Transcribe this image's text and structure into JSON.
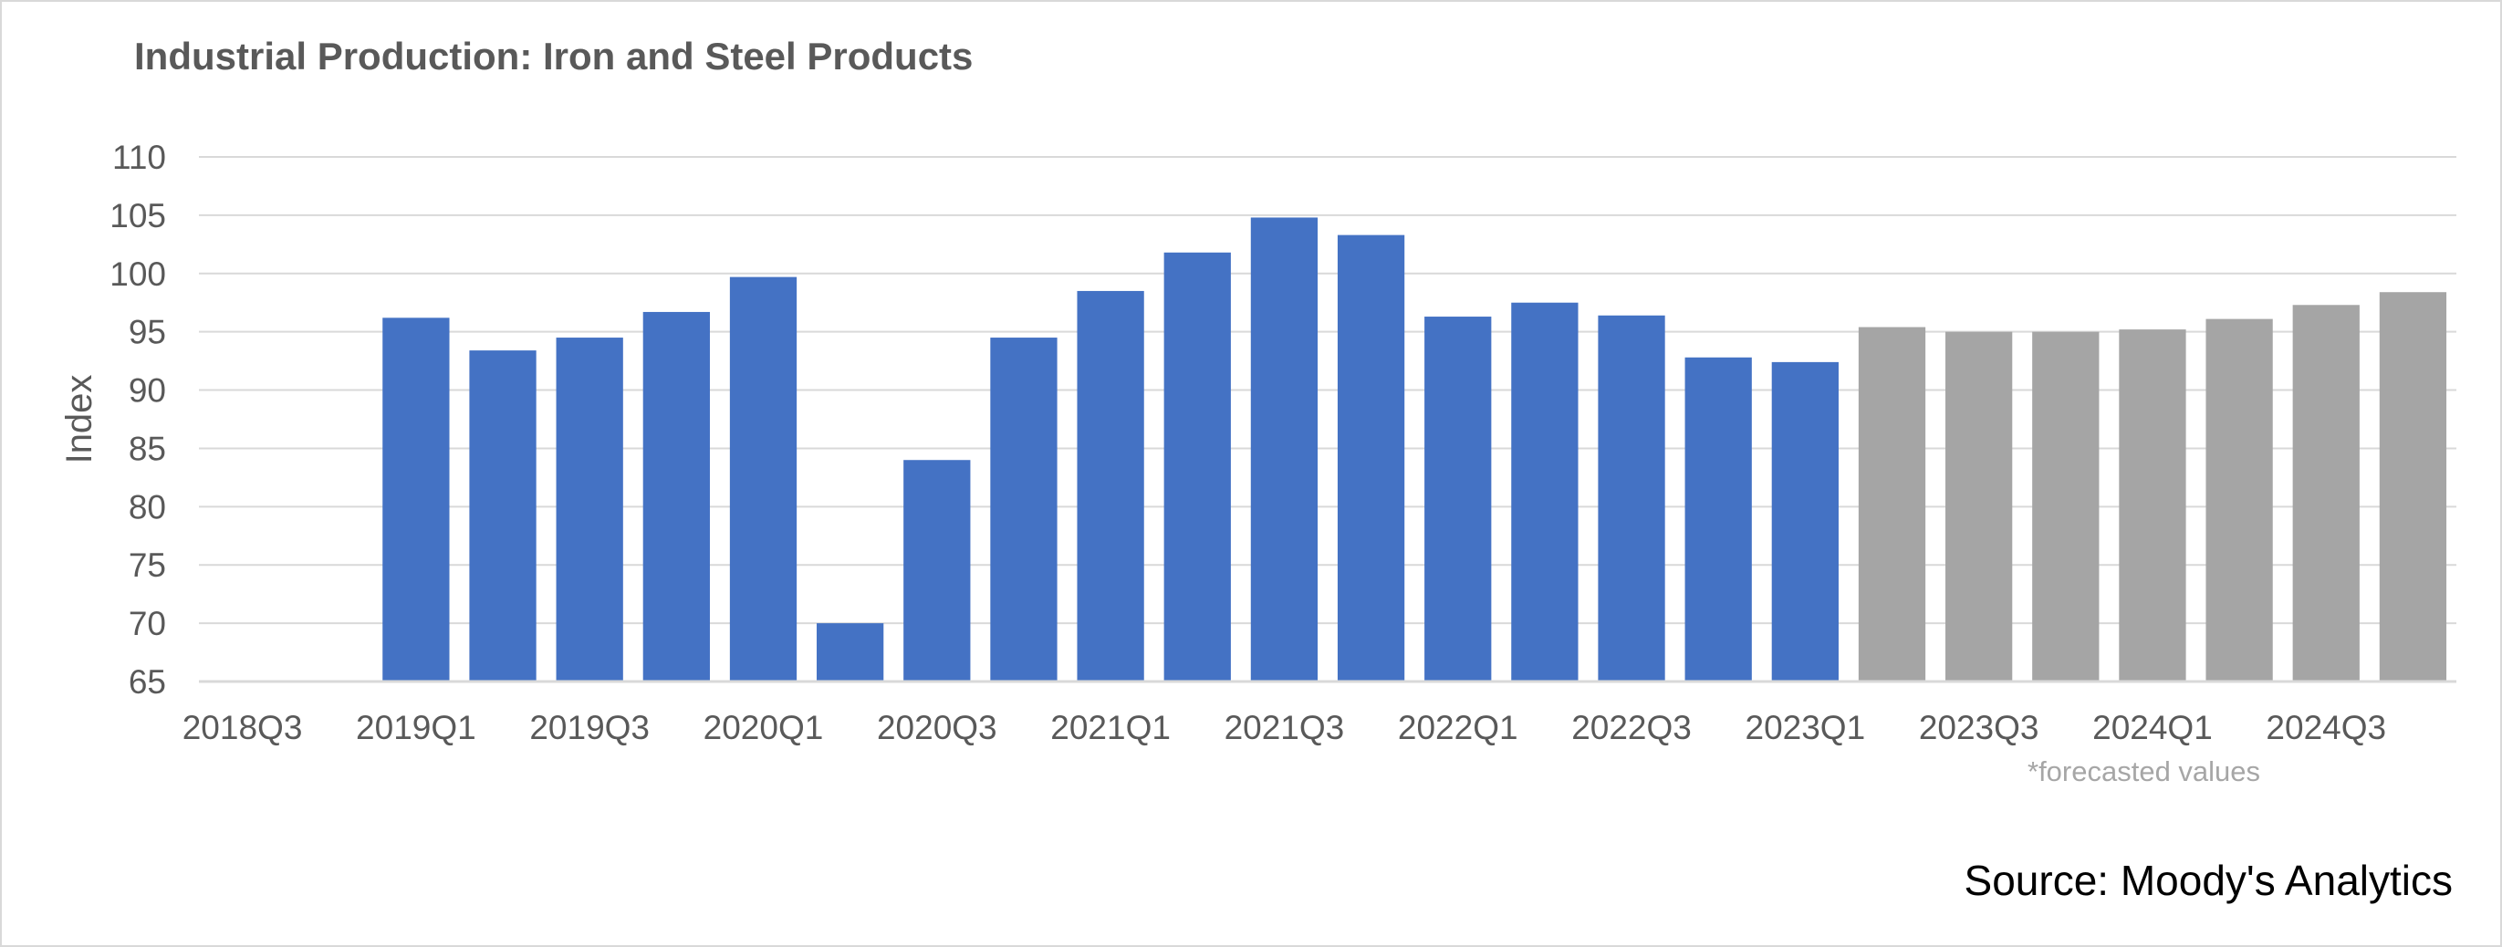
{
  "chart_data": {
    "type": "bar",
    "title": "Industrial Production: Iron and Steel Products",
    "xlabel": "",
    "ylabel": "Index",
    "ylim": [
      65,
      110
    ],
    "yticks": [
      65,
      70,
      75,
      80,
      85,
      90,
      95,
      100,
      105,
      110
    ],
    "grid": true,
    "categories": [
      "2018Q3",
      "2018Q4",
      "2019Q1",
      "2019Q2",
      "2019Q3",
      "2019Q4",
      "2020Q1",
      "2020Q2",
      "2020Q3",
      "2020Q4",
      "2021Q1",
      "2021Q2",
      "2021Q3",
      "2021Q4",
      "2022Q1",
      "2022Q2",
      "2022Q3",
      "2022Q4",
      "2023Q1",
      "2023Q2",
      "2023Q3",
      "2023Q4",
      "2024Q1",
      "2024Q2",
      "2024Q3",
      "2024Q4"
    ],
    "x_tick_labels": [
      "2018Q3",
      "2019Q1",
      "2019Q3",
      "2020Q1",
      "2020Q3",
      "2021Q1",
      "2021Q3",
      "2022Q1",
      "2022Q3",
      "2023Q1",
      "2023Q3",
      "2024Q1",
      "2024Q3"
    ],
    "values": [
      null,
      null,
      96.2,
      93.4,
      94.5,
      96.7,
      99.7,
      70.0,
      84.0,
      94.5,
      98.5,
      101.8,
      104.8,
      103.3,
      96.3,
      97.5,
      96.4,
      92.8,
      92.4,
      95.4,
      95.0,
      95.0,
      95.2,
      96.1,
      97.3,
      98.4
    ],
    "forecast_start_index": 19,
    "colors": {
      "actual": "#4472c4",
      "forecast": "#a5a5a5",
      "grid": "#d9d9d9",
      "axis_text": "#595959"
    },
    "annotation": "*forecasted values",
    "source": "Source: Moody's Analytics"
  }
}
